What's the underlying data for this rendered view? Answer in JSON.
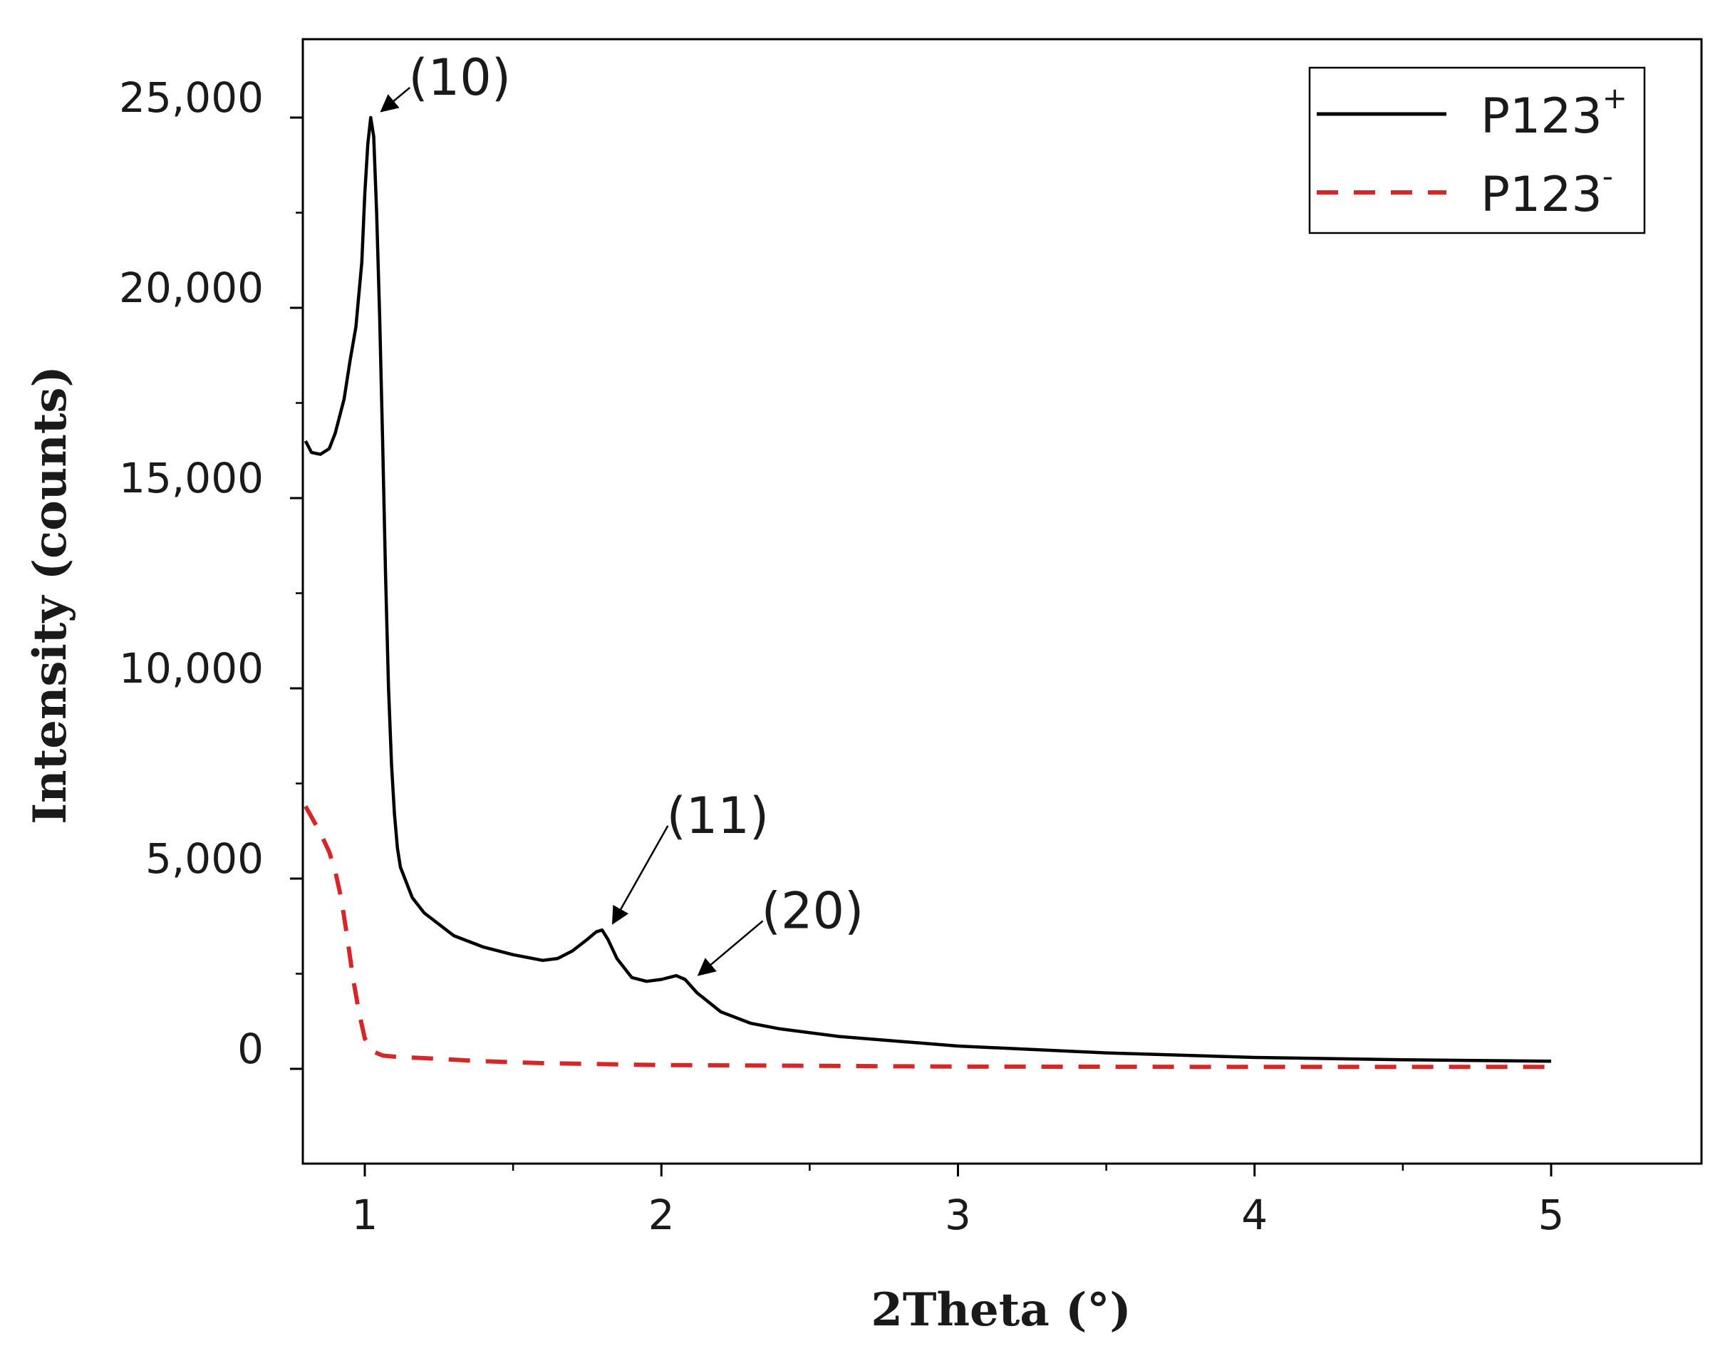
{
  "chart_data": {
    "type": "line",
    "title": "",
    "xlabel": "2Theta (°)",
    "ylabel": "Intensity (counts)",
    "xlim": [
      0.8,
      5.5
    ],
    "ylim": [
      -2500,
      27500
    ],
    "x_ticks": [
      1,
      2,
      3,
      4,
      5
    ],
    "x_tick_labels": [
      "1",
      "2",
      "3",
      "4",
      "5"
    ],
    "x_minor_ticks": [
      1.5,
      2.5,
      3.5,
      4.5
    ],
    "y_ticks": [
      0,
      5000,
      10000,
      15000,
      20000,
      25000
    ],
    "y_tick_labels": [
      "0",
      "5,000",
      "10,000",
      "15,000",
      "20,000",
      "25,000"
    ],
    "y_minor_ticks": [
      2500,
      7500,
      12500,
      17500,
      22500
    ],
    "grid": false,
    "legend_position": "top-right",
    "series": [
      {
        "name": "P123",
        "superscript": "+",
        "color": "#000000",
        "style": "solid",
        "x": [
          0.8,
          0.82,
          0.85,
          0.88,
          0.9,
          0.93,
          0.95,
          0.97,
          0.99,
          1.0,
          1.01,
          1.02,
          1.03,
          1.04,
          1.05,
          1.06,
          1.07,
          1.08,
          1.09,
          1.1,
          1.11,
          1.12,
          1.14,
          1.16,
          1.2,
          1.25,
          1.3,
          1.4,
          1.5,
          1.6,
          1.65,
          1.7,
          1.75,
          1.78,
          1.8,
          1.82,
          1.85,
          1.9,
          1.95,
          2.0,
          2.05,
          2.08,
          2.12,
          2.2,
          2.3,
          2.4,
          2.6,
          3.0,
          3.5,
          4.0,
          4.5,
          5.0
        ],
        "y": [
          16500,
          16200,
          16150,
          16300,
          16700,
          17600,
          18600,
          19500,
          21200,
          23000,
          24300,
          25000,
          24500,
          22500,
          19800,
          16500,
          13000,
          10000,
          8000,
          6700,
          5800,
          5300,
          4900,
          4500,
          4100,
          3800,
          3500,
          3200,
          3000,
          2850,
          2900,
          3100,
          3400,
          3600,
          3650,
          3400,
          2900,
          2400,
          2300,
          2350,
          2450,
          2350,
          2000,
          1500,
          1200,
          1050,
          850,
          600,
          420,
          300,
          240,
          200
        ]
      },
      {
        "name": "P123",
        "superscript": "-",
        "color": "#d62728",
        "style": "dashed",
        "x": [
          0.8,
          0.85,
          0.88,
          0.9,
          0.92,
          0.94,
          0.96,
          0.98,
          1.0,
          1.03,
          1.06,
          1.1,
          1.2,
          1.4,
          1.6,
          2.0,
          2.5,
          3.0,
          4.0,
          5.0
        ],
        "y": [
          6900,
          6200,
          5700,
          5200,
          4500,
          3500,
          2400,
          1500,
          800,
          450,
          350,
          320,
          280,
          200,
          150,
          100,
          80,
          60,
          50,
          50
        ]
      }
    ],
    "annotations": [
      {
        "label": "(10)",
        "x": 1.03,
        "y": 25000,
        "text_x": 1.32,
        "text_y": 25600
      },
      {
        "label": "(11)",
        "x": 1.82,
        "y": 3600,
        "text_x": 2.19,
        "text_y": 6200
      },
      {
        "label": "(20)",
        "x": 2.1,
        "y": 2300,
        "text_x": 2.51,
        "text_y": 3700
      }
    ]
  }
}
